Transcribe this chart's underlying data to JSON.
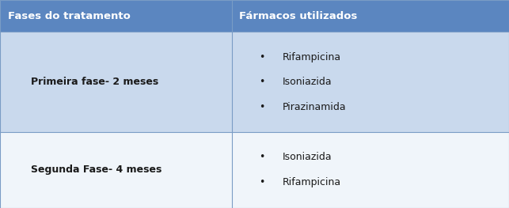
{
  "header_bg_color": "#5B86C0",
  "header_text_color": "#FFFFFF",
  "row1_bg_color": "#C9D9ED",
  "row2_bg_color": "#F0F5FA",
  "border_color": "#7A9CC5",
  "col1_header": "Fases do tratamento",
  "col2_header": "Fármacos utilizados",
  "row1_col1": "Primeira fase- 2 meses",
  "row1_col2": [
    "Rifampicina",
    "Isoniazida",
    "Pirazinamida"
  ],
  "row2_col1": "Segunda Fase- 4 meses",
  "row2_col2": [
    "Isoniazida",
    "Rifampicina"
  ],
  "col_split": 0.455,
  "header_fontsize": 9.5,
  "cell_fontsize": 9.0,
  "fig_width": 6.43,
  "fig_height": 2.63,
  "dpi": 100
}
